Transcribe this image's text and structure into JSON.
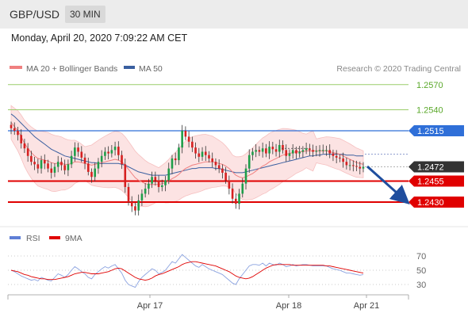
{
  "header": {
    "pair": "GBP/USD",
    "timeframe": "30 MIN",
    "datetime": "Monday, April 20, 2020 7:09:22 AM CET"
  },
  "legend": {
    "ma_boll": "MA 20 + Bollinger Bands",
    "ma50": "MA 50",
    "copyright": "Research © 2020 Trading Central",
    "rsi": "RSI",
    "ma9": "9MA"
  },
  "colors": {
    "ma20": "#f08080",
    "ma50": "#3a5fa0",
    "green": "#9acd6a",
    "blue": "#2f6fd8",
    "red": "#e00000",
    "current": "#333333"
  },
  "chart_data": {
    "type": "candlestick",
    "x_labels": [
      "Apr 17",
      "Apr 18",
      "Apr 21"
    ],
    "price_range": [
      1.2415,
      1.259
    ],
    "levels": [
      {
        "value": 1.257,
        "label": "1.2570",
        "type": "resistance"
      },
      {
        "value": 1.254,
        "label": "1.2540",
        "type": "resistance"
      },
      {
        "value": 1.2515,
        "label": "1.2515",
        "type": "pivot"
      },
      {
        "value": 1.2472,
        "label": "1.2472",
        "type": "current"
      },
      {
        "value": 1.2455,
        "label": "1.2455",
        "type": "support"
      },
      {
        "value": 1.243,
        "label": "1.2430",
        "type": "support"
      }
    ],
    "close": [
      1.2518,
      1.2515,
      1.251,
      1.25,
      1.2494,
      1.2485,
      1.2478,
      1.2475,
      1.247,
      1.248,
      1.2476,
      1.247,
      1.2465,
      1.2472,
      1.2478,
      1.2474,
      1.2468,
      1.2475,
      1.2485,
      1.2495,
      1.249,
      1.2483,
      1.2476,
      1.2466,
      1.246,
      1.247,
      1.2478,
      1.2485,
      1.249,
      1.2488,
      1.2492,
      1.2496,
      1.2486,
      1.2475,
      1.2448,
      1.243,
      1.2425,
      1.242,
      1.2432,
      1.244,
      1.2446,
      1.2452,
      1.246,
      1.2456,
      1.2448,
      1.245,
      1.2456,
      1.247,
      1.2482,
      1.248,
      1.2495,
      1.2515,
      1.2508,
      1.2502,
      1.2495,
      1.2488,
      1.2484,
      1.249,
      1.2486,
      1.2482,
      1.2478,
      1.2474,
      1.247,
      1.2465,
      1.2456,
      1.2446,
      1.2434,
      1.2428,
      1.244,
      1.2452,
      1.247,
      1.2486,
      1.249,
      1.2492,
      1.249,
      1.2494,
      1.2488,
      1.2496,
      1.2493,
      1.249,
      1.2498,
      1.2492,
      1.2485,
      1.2488,
      1.2492,
      1.2488,
      1.249,
      1.2492,
      1.2494,
      1.2492,
      1.249,
      1.2491,
      1.2492,
      1.2492,
      1.2492,
      1.2488,
      1.2485,
      1.2483,
      1.2482,
      1.2478,
      1.2474,
      1.2474,
      1.2473,
      1.2472,
      1.247,
      1.2472
    ],
    "ma20": [
      1.2525,
      1.252,
      1.2515,
      1.2508,
      1.25,
      1.2494,
      1.2489,
      1.2485,
      1.2482,
      1.2481,
      1.248,
      1.2479,
      1.2477,
      1.2476,
      1.2476,
      1.2476,
      1.2475,
      1.2475,
      1.2476,
      1.2478,
      1.2478,
      1.2477,
      1.2476,
      1.2475,
      1.2474,
      1.2475,
      1.2476,
      1.2477,
      1.2478,
      1.2479,
      1.248,
      1.2481,
      1.248,
      1.2478,
      1.2474,
      1.2469,
      1.2464,
      1.2459,
      1.2456,
      1.2454,
      1.2452,
      1.2451,
      1.2451,
      1.2451,
      1.2451,
      1.2452,
      1.2453,
      1.2455,
      1.2458,
      1.246,
      1.2463,
      1.2467,
      1.247,
      1.2472,
      1.2474,
      1.2475,
      1.2476,
      1.2477,
      1.2478,
      1.2478,
      1.2478,
      1.2477,
      1.2476,
      1.2475,
      1.2473,
      1.247,
      1.2466,
      1.2462,
      1.246,
      1.2459,
      1.246,
      1.2462,
      1.2464,
      1.2467,
      1.247,
      1.2473,
      1.2475,
      1.2478,
      1.248,
      1.2482,
      1.2484,
      1.2486,
      1.2487,
      1.2488,
      1.2489,
      1.249,
      1.249,
      1.249,
      1.2491,
      1.2491,
      1.2491,
      1.2491,
      1.2491,
      1.2491,
      1.2491,
      1.249,
      1.2489,
      1.2488,
      1.2487,
      1.2485,
      1.2483,
      1.2481,
      1.2479,
      1.2477,
      1.2476,
      1.2475
    ],
    "ma50": [
      1.2535,
      1.2532,
      1.2528,
      1.2524,
      1.252,
      1.2516,
      1.2512,
      1.2508,
      1.2505,
      1.2502,
      1.2499,
      1.2496,
      1.2493,
      1.2491,
      1.2489,
      1.2487,
      1.2485,
      1.2484,
      1.2483,
      1.2482,
      1.2481,
      1.248,
      1.2479,
      1.2478,
      1.2477,
      1.2477,
      1.2476,
      1.2476,
      1.2476,
      1.2476,
      1.2476,
      1.2476,
      1.2476,
      1.2475,
      1.2474,
      1.2472,
      1.247,
      1.2468,
      1.2466,
      1.2465,
      1.2464,
      1.2463,
      1.2462,
      1.2462,
      1.2462,
      1.2462,
      1.2462,
      1.2463,
      1.2464,
      1.2465,
      1.2466,
      1.2467,
      1.2468,
      1.2469,
      1.247,
      1.247,
      1.2471,
      1.2471,
      1.2471,
      1.2471,
      1.2471,
      1.247,
      1.247,
      1.2469,
      1.2468,
      1.2467,
      1.2466,
      1.2465,
      1.2465,
      1.2465,
      1.2466,
      1.2467,
      1.2468,
      1.2469,
      1.247,
      1.2471,
      1.2472,
      1.2473,
      1.2474,
      1.2475,
      1.2476,
      1.2477,
      1.2478,
      1.2479,
      1.248,
      1.2481,
      1.2482,
      1.2483,
      1.2484,
      1.2485,
      1.2485,
      1.2486,
      1.2486,
      1.2487,
      1.2487,
      1.2487,
      1.2487,
      1.2487,
      1.2487,
      1.2487,
      1.2486,
      1.2486,
      1.2486,
      1.2485,
      1.2485,
      1.2485
    ],
    "rsi_axis": [
      70,
      50,
      30
    ],
    "rsi": [
      50,
      48,
      45,
      42,
      40,
      38,
      36,
      37,
      35,
      40,
      38,
      36,
      35,
      40,
      45,
      43,
      40,
      44,
      50,
      55,
      52,
      48,
      45,
      40,
      38,
      44,
      48,
      52,
      55,
      53,
      56,
      58,
      52,
      46,
      36,
      30,
      28,
      26,
      34,
      40,
      44,
      48,
      52,
      50,
      45,
      47,
      50,
      56,
      62,
      60,
      66,
      72,
      68,
      64,
      60,
      56,
      54,
      58,
      55,
      52,
      50,
      48,
      46,
      44,
      40,
      36,
      32,
      30,
      38,
      44,
      50,
      56,
      58,
      58,
      57,
      60,
      56,
      60,
      58,
      57,
      60,
      58,
      55,
      56,
      58,
      56,
      57,
      58,
      58,
      57,
      56,
      56,
      56,
      56,
      56,
      54,
      52,
      51,
      50,
      48,
      46,
      46,
      45,
      44,
      43,
      44
    ],
    "rsi_ma9": [
      50,
      49,
      48,
      46,
      44,
      43,
      41,
      40,
      39,
      38,
      38,
      37,
      37,
      37,
      38,
      39,
      40,
      41,
      43,
      45,
      46,
      47,
      47,
      46,
      45,
      45,
      45,
      46,
      47,
      48,
      50,
      52,
      53,
      52,
      49,
      46,
      43,
      40,
      38,
      37,
      36,
      37,
      39,
      42,
      44,
      45,
      47,
      49,
      51,
      53,
      55,
      58,
      60,
      61,
      62,
      62,
      61,
      60,
      59,
      58,
      57,
      56,
      54,
      52,
      50,
      48,
      45,
      42,
      40,
      39,
      38,
      39,
      41,
      44,
      47,
      50,
      53,
      55,
      57,
      58,
      58,
      58,
      58,
      58,
      57,
      57,
      57,
      57,
      57,
      57,
      57,
      57,
      57,
      57,
      56,
      56,
      55,
      54,
      53,
      52,
      51,
      50,
      49,
      48,
      47,
      46
    ]
  }
}
